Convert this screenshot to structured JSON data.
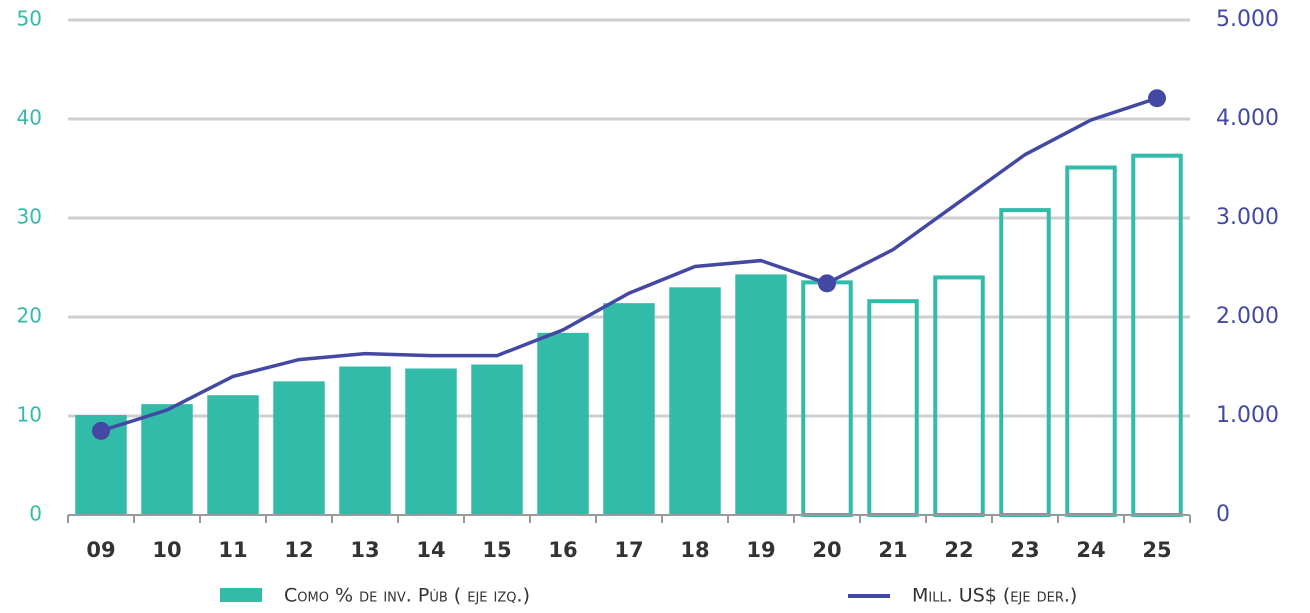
{
  "chart_data": {
    "type": "bar_line",
    "categories": [
      "09",
      "10",
      "11",
      "12",
      "13",
      "14",
      "15",
      "16",
      "17",
      "18",
      "19",
      "20",
      "21",
      "22",
      "23",
      "24",
      "25"
    ],
    "series": [
      {
        "name": "Como % de inv. Púb ( eje izq.)",
        "color": "#33bba9",
        "type": "bar",
        "values": [
          10.1,
          11.2,
          12.1,
          13.5,
          15.0,
          14.8,
          15.2,
          18.4,
          21.4,
          23.0,
          24.3,
          23.7,
          21.8,
          24.2,
          31.0,
          35.3,
          36.5
        ]
      },
      {
        "name": "Mill. US$ (eje der.)",
        "color": "#4348a3",
        "type": "line",
        "axis": "y2",
        "values": [
          850,
          1060,
          1400,
          1570,
          1630,
          1610,
          1610,
          1870,
          2240,
          2510,
          2570,
          2340,
          2680,
          3160,
          3640,
          3990,
          4210
        ]
      }
    ],
    "outline_from": "20",
    "markers": [
      "09",
      "20",
      "25"
    ],
    "ylim": [
      0,
      50
    ],
    "yticks": [
      0,
      10,
      20,
      30,
      40,
      50
    ],
    "y2lim": [
      0,
      5000
    ],
    "y2ticks": [
      0,
      {
        "value": 1000,
        "label": "1.000"
      },
      {
        "value": 2000,
        "label": "2.000"
      },
      {
        "value": 3000,
        "label": "3.000"
      },
      {
        "value": 4000,
        "label": "4.000"
      },
      {
        "value": 5000,
        "label": "5.000"
      }
    ],
    "grid": true,
    "legend": "bottom"
  }
}
